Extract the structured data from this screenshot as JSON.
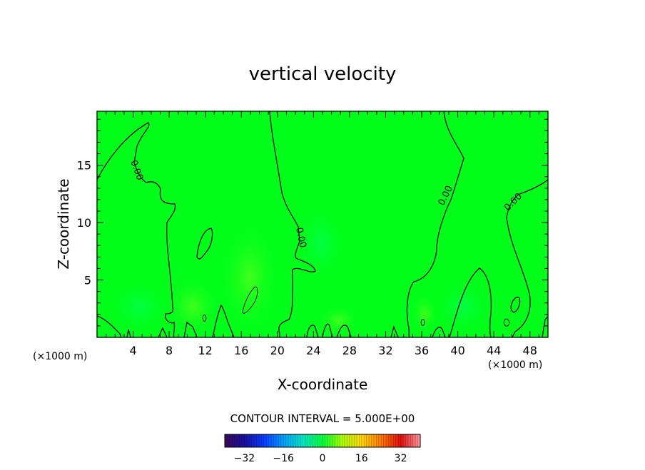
{
  "chart_data": {
    "type": "heatmap",
    "title": "vertical velocity",
    "xlabel": "X-coordinate",
    "ylabel": "Z-coordinate",
    "x_unit": "(×1000 m)",
    "x_ticks": [
      4,
      8,
      12,
      16,
      20,
      24,
      28,
      32,
      36,
      40,
      44,
      48
    ],
    "y_ticks": [
      5,
      10,
      15
    ],
    "xlim": [
      0,
      50
    ],
    "ylim": [
      0,
      19.7
    ],
    "contour_interval_text": "CONTOUR INTERVAL = 5.000E+00",
    "contour_labels": [
      "0.00",
      "0.00",
      "0.00",
      "0.00"
    ],
    "colorbar": {
      "range": [
        -40,
        40
      ],
      "ticks": [
        -32,
        -16,
        0,
        16,
        32
      ],
      "colors": [
        "#3a0a5a",
        "#1a10a0",
        "#0a3cff",
        "#00a0ff",
        "#00e8c8",
        "#00ff3c",
        "#a8ff00",
        "#ffd800",
        "#ff7a00",
        "#e01010",
        "#ff9aa0"
      ]
    },
    "field_color": "#00ff19"
  }
}
